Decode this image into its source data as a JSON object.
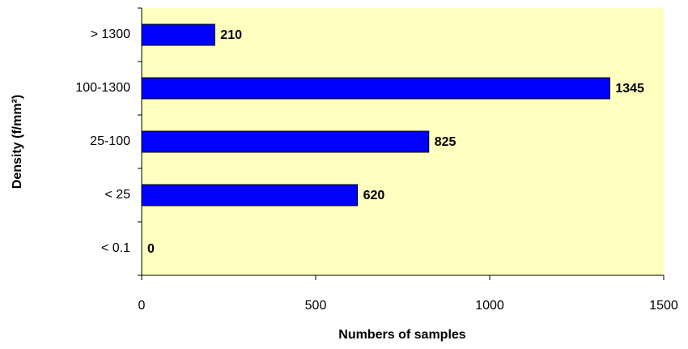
{
  "chart_data": {
    "type": "bar",
    "orientation": "horizontal",
    "x_label": "Numbers of samples",
    "y_label": "Density (f/mm²)",
    "categories": [
      "< 0.1",
      "< 25",
      "25-100",
      "100-1300",
      "> 1300"
    ],
    "values": [
      0,
      620,
      825,
      1345,
      210
    ],
    "color": "#0000ff",
    "background": "#ffffc0",
    "xlim": [
      0,
      1500
    ],
    "xticks": [
      0,
      500,
      1000,
      1500
    ]
  }
}
